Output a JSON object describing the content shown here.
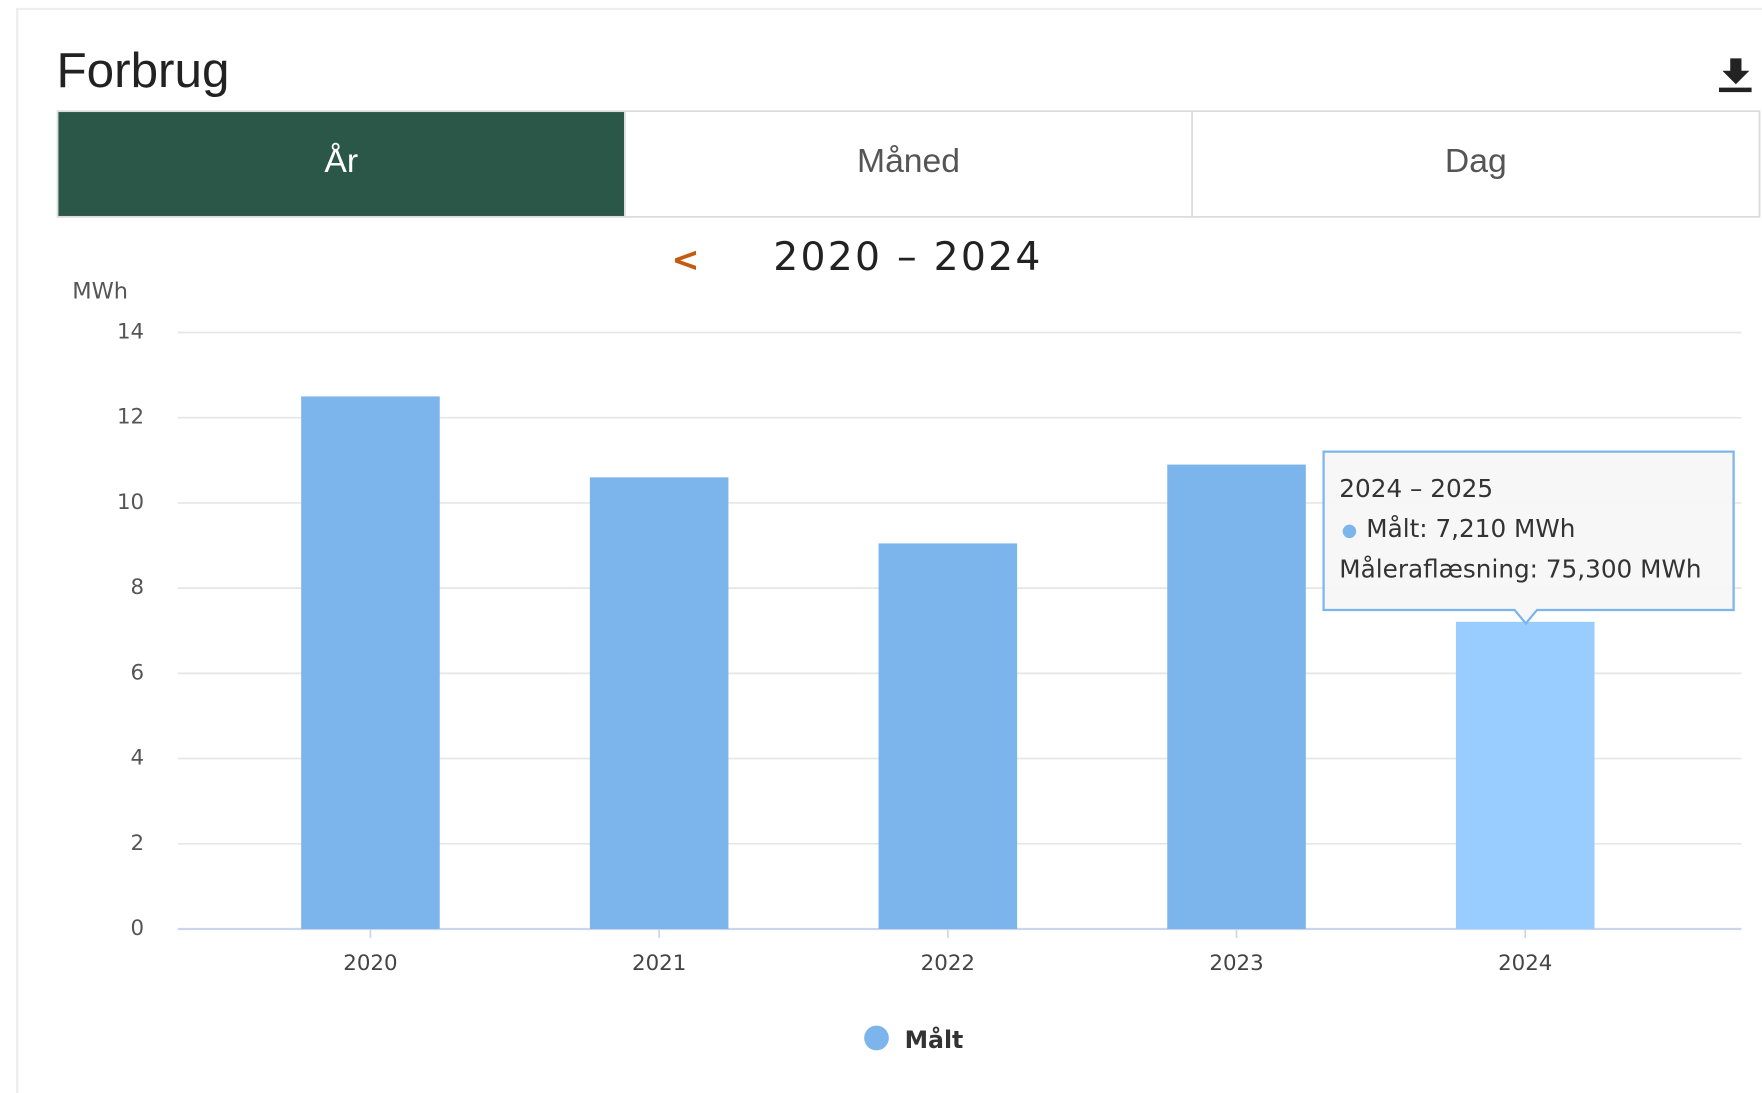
{
  "header": {
    "title": "Forbrug"
  },
  "tabs": {
    "items": [
      "År",
      "Måned",
      "Dag"
    ],
    "active": 0
  },
  "period": {
    "prev": "<",
    "label": "2020 – 2024"
  },
  "chart_data": {
    "type": "bar",
    "y_label": "MWh",
    "categories": [
      "2020",
      "2021",
      "2022",
      "2023",
      "2024"
    ],
    "series": [
      {
        "name": "Målt",
        "color": "#7cb5ec",
        "values": [
          12.5,
          10.6,
          9.05,
          10.9,
          7.21
        ]
      }
    ],
    "highlight_index": 4,
    "highlight_color": "#99ccff",
    "ylim": [
      0,
      14
    ],
    "yticks": [
      0,
      2,
      4,
      6,
      8,
      10,
      12,
      14
    ],
    "grid": true,
    "legend": "bottom",
    "tooltip": {
      "title": "2024 – 2025",
      "lines": [
        "Målt: 7,210 MWh",
        "Måleraflæsning: 75,300 MWh"
      ]
    }
  }
}
